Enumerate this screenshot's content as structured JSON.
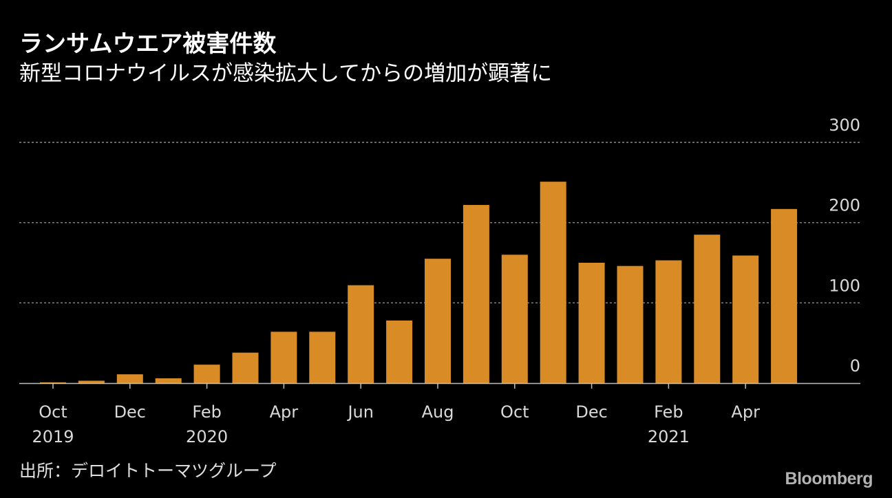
{
  "header": {
    "title": "ランサムウエア被害件数",
    "subtitle": "新型コロナウイルスが感染拡大してからの増加が顕著に"
  },
  "footer": {
    "source": "出所：デロイトトーマツグループ",
    "logo": "Bloomberg"
  },
  "colors": {
    "background": "#000000",
    "bar": "#d98b26",
    "grid": "#8c8c8c",
    "axis": "#bfbfbf",
    "text": "#ffffff",
    "tick_text": "#d9d9d9"
  },
  "chart_data": {
    "type": "bar",
    "categories": [
      "2019-10",
      "2019-11",
      "2019-12",
      "2020-01",
      "2020-02",
      "2020-03",
      "2020-04",
      "2020-05",
      "2020-06",
      "2020-07",
      "2020-08",
      "2020-09",
      "2020-10",
      "2020-11",
      "2020-12",
      "2021-01",
      "2021-02",
      "2021-03",
      "2021-04",
      "2021-05"
    ],
    "values": [
      1,
      3,
      11,
      6,
      23,
      38,
      64,
      64,
      122,
      78,
      155,
      222,
      160,
      251,
      150,
      146,
      153,
      185,
      159,
      217
    ],
    "ylim": [
      0,
      300
    ],
    "yticks": [
      0,
      100,
      200,
      300
    ],
    "ytick_labels": [
      "0",
      "100",
      "200",
      "300"
    ],
    "y_axis_position": "right",
    "grid": true,
    "x_tick_labels": [
      {
        "index": 0,
        "month": "Oct",
        "year": "2019"
      },
      {
        "index": 2,
        "month": "Dec",
        "year": ""
      },
      {
        "index": 4,
        "month": "Feb",
        "year": "2020"
      },
      {
        "index": 6,
        "month": "Apr",
        "year": ""
      },
      {
        "index": 8,
        "month": "Jun",
        "year": ""
      },
      {
        "index": 10,
        "month": "Aug",
        "year": ""
      },
      {
        "index": 12,
        "month": "Oct",
        "year": ""
      },
      {
        "index": 14,
        "month": "Dec",
        "year": ""
      },
      {
        "index": 16,
        "month": "Feb",
        "year": "2021"
      },
      {
        "index": 18,
        "month": "Apr",
        "year": ""
      }
    ]
  }
}
